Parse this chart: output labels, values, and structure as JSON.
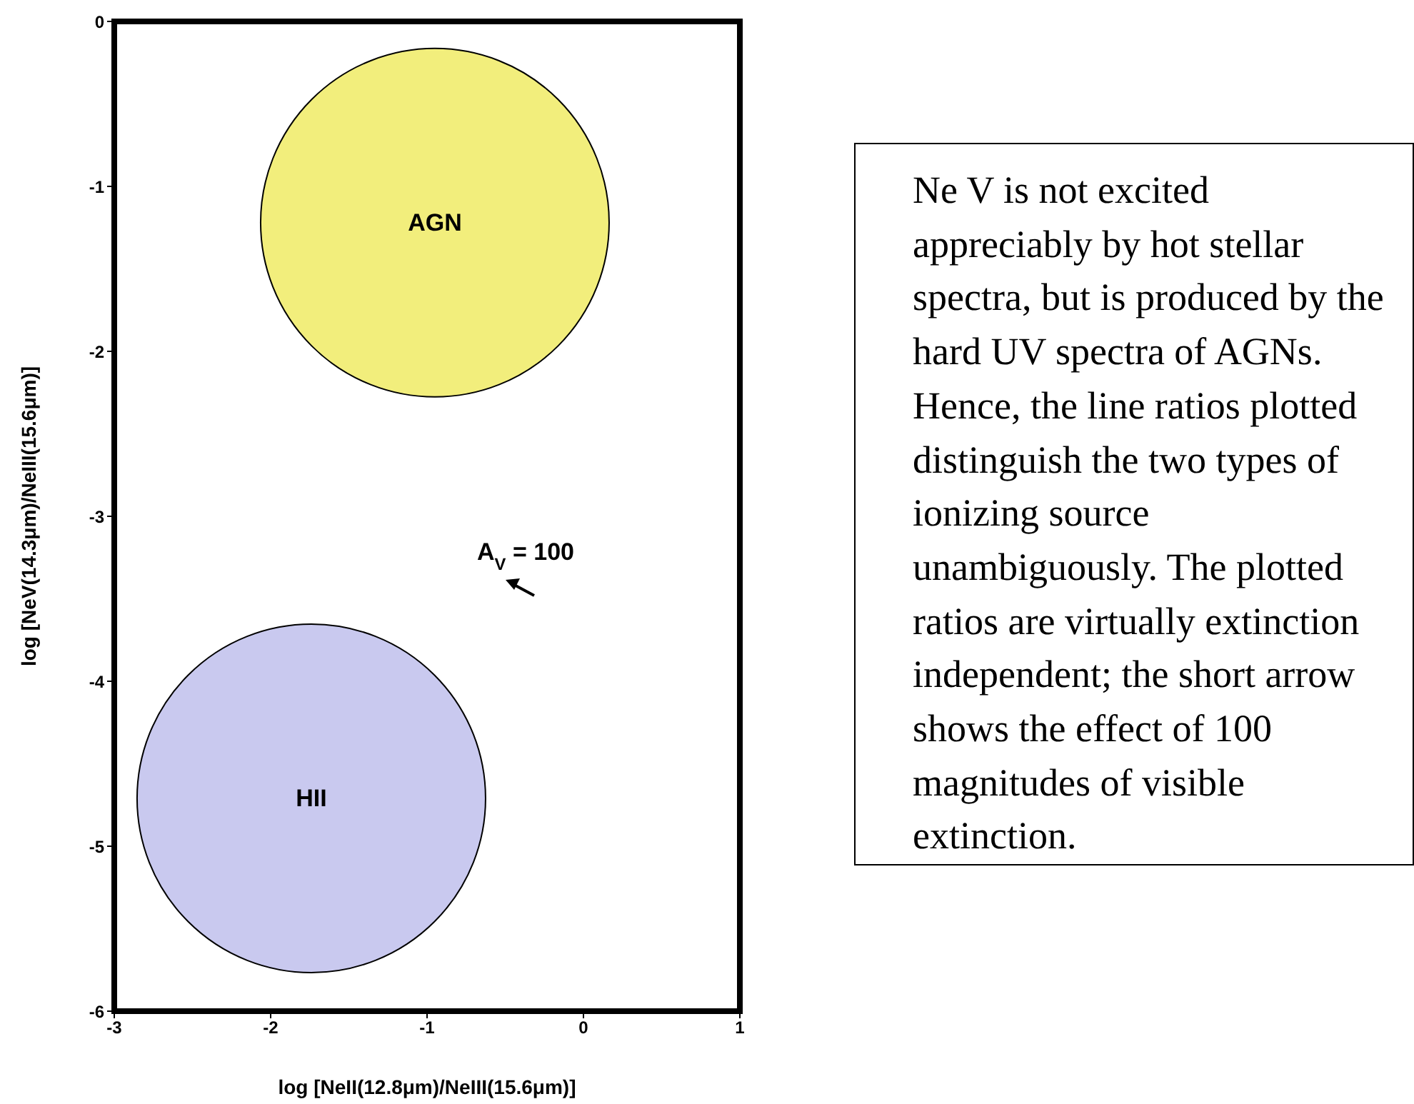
{
  "chart_data": {
    "type": "bubble",
    "xlabel": "log [NeII(12.8μm)/NeIII(15.6μm)]",
    "ylabel": "log [NeV(14.3μm)/NeIII(15.6μm)]",
    "xlim": [
      -3,
      1
    ],
    "xticks": [
      -3,
      -2,
      -1,
      0,
      1
    ],
    "ylim": [
      -6,
      0
    ],
    "yticks": [
      0,
      -1,
      -2,
      -3,
      -4,
      -5,
      -6
    ],
    "series": [
      {
        "name": "AGN",
        "color": "#f2ee7c",
        "x": [
          -0.95
        ],
        "values": [
          -1.22
        ],
        "sizes": [
          1
        ]
      },
      {
        "name": "HII",
        "color": "#c9c9ef",
        "x": [
          -1.74
        ],
        "values": [
          -4.71
        ],
        "sizes": [
          1
        ]
      }
    ],
    "annotations": [
      "A$_{V}$ = 100",
      "Ne V is not excited appreciably by hot stellar spectra, but is produced by the hard UV spectra of AGNs. Hence, the line ratios plotted distinguish the two types of ionizing source unambiguously. The plotted ratios are virtually extinction independent; the short arrow shows the effect of 100 magnitudes of visible extinction."
    ]
  }
}
